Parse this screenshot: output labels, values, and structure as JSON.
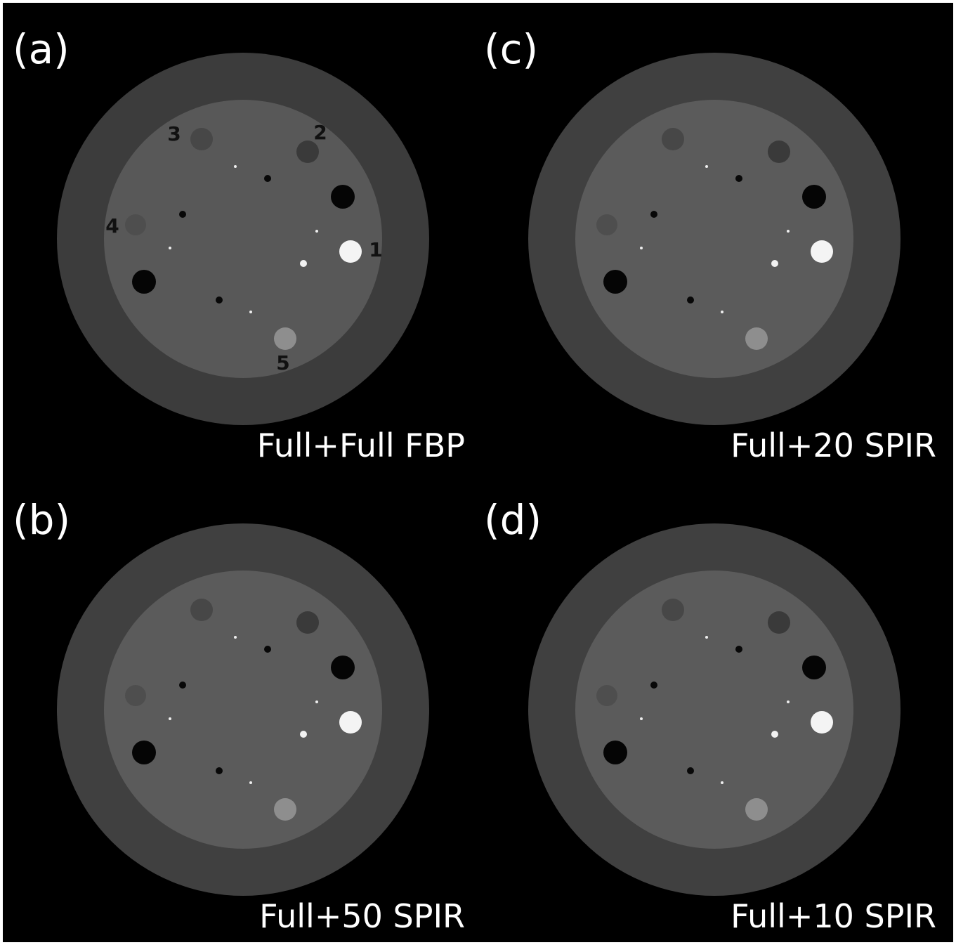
{
  "panels": [
    {
      "label": "(a)",
      "caption": "Full+Full FBP",
      "markers": [
        "1",
        "2",
        "3",
        "4",
        "5"
      ]
    },
    {
      "label": "(c)",
      "caption": "Full+20 SPIR"
    },
    {
      "label": "(b)",
      "caption": "Full+50 SPIR"
    },
    {
      "label": "(d)",
      "caption": "Full+10 SPIR"
    }
  ]
}
